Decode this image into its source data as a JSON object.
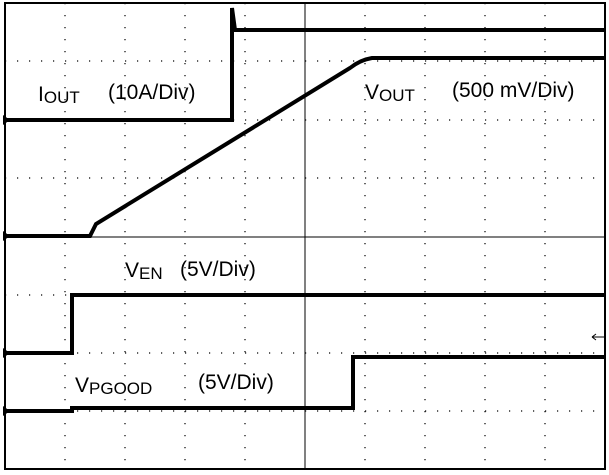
{
  "traces": [
    {
      "symbol": "I",
      "subscript": "OUT",
      "scale": "(10A/Div)"
    },
    {
      "symbol": "V",
      "subscript": "OUT",
      "scale": "(500 mV/Div)"
    },
    {
      "symbol": "V",
      "subscript": "EN",
      "scale": "(5V/Div)"
    },
    {
      "symbol": "V",
      "subscript": "PGOOD",
      "scale": "(5V/Div)"
    }
  ]
}
